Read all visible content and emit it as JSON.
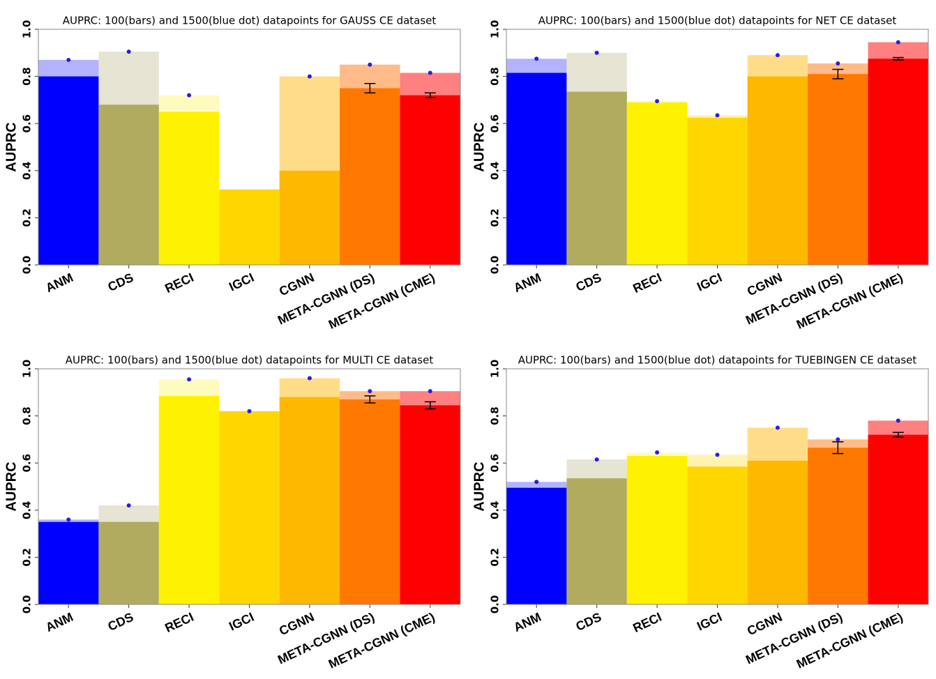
{
  "chart_data": [
    {
      "type": "bar",
      "title": "AUPRC: 100(bars) and 1500(blue dot) datapoints for GAUSS CE dataset",
      "y_label": "AUPRC",
      "categories": [
        "ANM",
        "CDS",
        "RECI",
        "IGCI",
        "CGNN",
        "META-CGNN (DS)",
        "META-CGNN (CME)"
      ],
      "values": [
        0.8,
        0.68,
        0.65,
        0.32,
        0.4,
        0.75,
        0.72
      ],
      "errors": [
        null,
        null,
        null,
        null,
        null,
        0.02,
        0.01
      ],
      "values_1500": [
        0.87,
        0.905,
        0.72,
        null,
        0.8,
        0.85,
        0.815
      ],
      "colors": [
        "#0000ff",
        "#b0ab5f",
        "#fff200",
        "#ffd700",
        "#ffb800",
        "#ff7800",
        "#ff0000"
      ],
      "light_colors": [
        "#b3b3ff",
        "#e6e4d2",
        "#fffbbf",
        "#fff3b0",
        "#ffdd88",
        "#ffbb88",
        "#ff8080"
      ],
      "dot_color": "#2a1fd6",
      "ylim": [
        0,
        1
      ],
      "yticks": [
        {
          "value": 0,
          "label": "0.0"
        },
        0.2,
        0.4,
        0.6,
        0.8,
        {
          "value": 1,
          "label": "1.0"
        }
      ]
    },
    {
      "type": "bar",
      "title": "AUPRC: 100(bars) and 1500(blue dot) datapoints for NET CE dataset",
      "y_label": "AUPRC",
      "categories": [
        "ANM",
        "CDS",
        "RECI",
        "IGCI",
        "CGNN",
        "META-CGNN (DS)",
        "META-CGNN (CME)"
      ],
      "values": [
        0.815,
        0.735,
        0.69,
        0.625,
        0.8,
        0.81,
        0.875
      ],
      "errors": [
        null,
        null,
        null,
        null,
        null,
        0.02,
        0.005
      ],
      "values_1500": [
        0.875,
        0.9,
        0.695,
        0.635,
        0.89,
        0.855,
        0.945
      ],
      "colors": [
        "#0000ff",
        "#b0ab5f",
        "#fff200",
        "#ffd700",
        "#ffb800",
        "#ff7800",
        "#ff0000"
      ],
      "light_colors": [
        "#b3b3ff",
        "#e6e4d2",
        "#fffbbf",
        "#fff3b0",
        "#ffdd88",
        "#ffbb88",
        "#ff8080"
      ],
      "dot_color": "#2a1fd6",
      "ylim": [
        0,
        1
      ],
      "yticks": [
        {
          "value": 0,
          "label": "0.0"
        },
        0.2,
        0.4,
        0.6,
        0.8,
        {
          "value": 1,
          "label": "1.0"
        }
      ]
    },
    {
      "type": "bar",
      "title": "AUPRC: 100(bars) and 1500(blue dot) datapoints for MULTI CE dataset",
      "y_label": "AUPRC",
      "categories": [
        "ANM",
        "CDS",
        "RECI",
        "IGCI",
        "CGNN",
        "META-CGNN (DS)",
        "META-CGNN (CME)"
      ],
      "values": [
        0.35,
        0.35,
        0.885,
        0.82,
        0.88,
        0.87,
        0.845
      ],
      "errors": [
        null,
        null,
        null,
        null,
        null,
        0.015,
        0.015
      ],
      "values_1500": [
        0.36,
        0.42,
        0.955,
        0.82,
        0.96,
        0.905,
        0.905
      ],
      "colors": [
        "#0000ff",
        "#b0ab5f",
        "#fff200",
        "#ffd700",
        "#ffb800",
        "#ff7800",
        "#ff0000"
      ],
      "light_colors": [
        "#b3b3ff",
        "#e6e4d2",
        "#fffbbf",
        "#fff3b0",
        "#ffdd88",
        "#ffbb88",
        "#ff8080"
      ],
      "dot_color": "#2a1fd6",
      "ylim": [
        0,
        1
      ],
      "yticks": [
        {
          "value": 0,
          "label": "0.0"
        },
        0.2,
        0.4,
        0.6,
        0.8,
        {
          "value": 1,
          "label": "1.0"
        }
      ]
    },
    {
      "type": "bar",
      "title": "AUPRC: 100(bars) and 1500(blue dot) datapoints for TUEBINGEN CE dataset",
      "y_label": "AUPRC",
      "categories": [
        "ANM",
        "CDS",
        "RECI",
        "IGCI",
        "CGNN",
        "META-CGNN (DS)",
        "META-CGNN (CME)"
      ],
      "values": [
        0.495,
        0.535,
        0.63,
        0.585,
        0.61,
        0.665,
        0.72
      ],
      "errors": [
        null,
        null,
        null,
        null,
        null,
        0.025,
        0.01
      ],
      "values_1500": [
        0.52,
        0.615,
        0.645,
        0.635,
        0.75,
        0.7,
        0.78
      ],
      "colors": [
        "#0000ff",
        "#b0ab5f",
        "#fff200",
        "#ffd700",
        "#ffb800",
        "#ff7800",
        "#ff0000"
      ],
      "light_colors": [
        "#b3b3ff",
        "#e6e4d2",
        "#fffbbf",
        "#fff3b0",
        "#ffdd88",
        "#ffbb88",
        "#ff8080"
      ],
      "dot_color": "#2a1fd6",
      "ylim": [
        0,
        1
      ],
      "yticks": [
        {
          "value": 0,
          "label": "0.0"
        },
        0.2,
        0.4,
        0.6,
        0.8,
        {
          "value": 1,
          "label": "1.0"
        }
      ]
    }
  ]
}
